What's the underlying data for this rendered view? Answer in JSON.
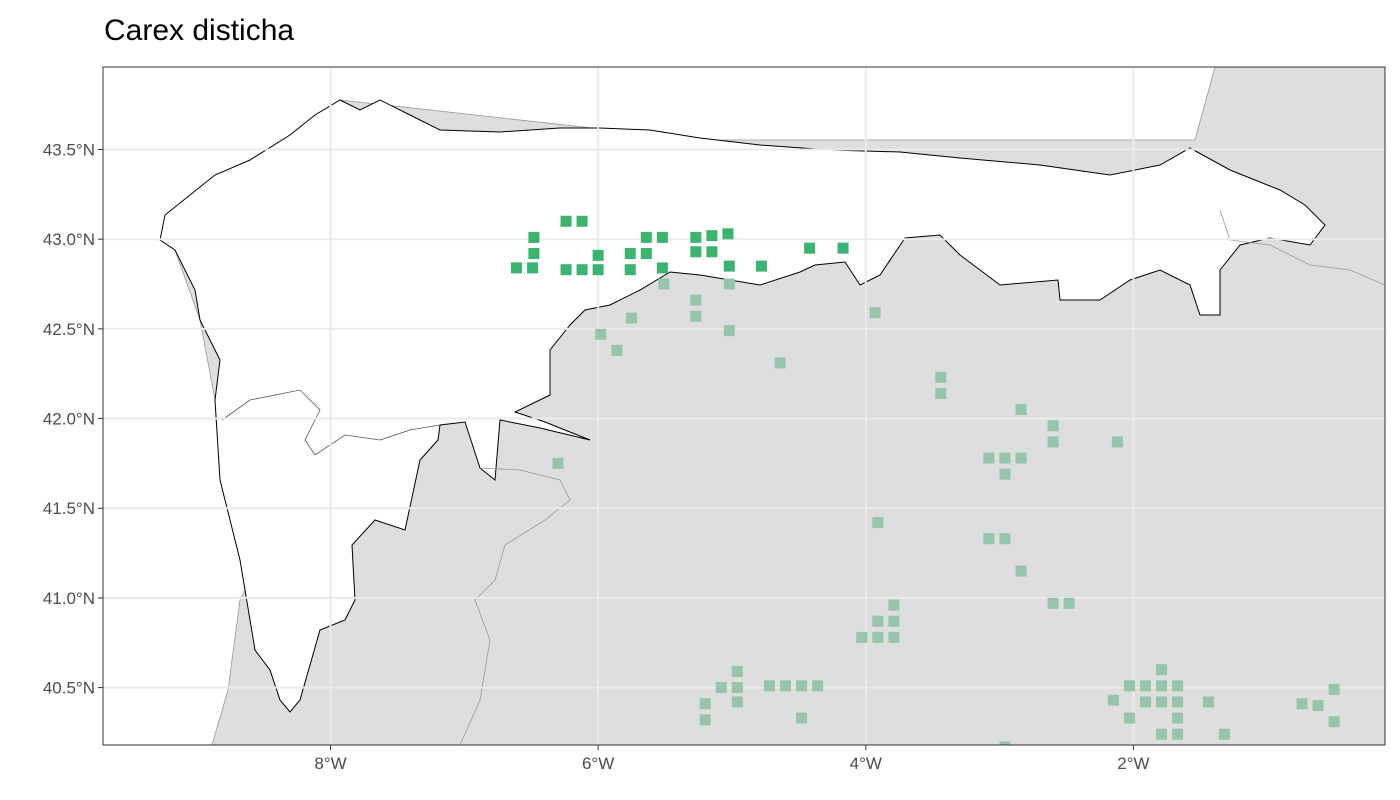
{
  "title": "Carex disticha",
  "colors": {
    "inside": "#3bb371",
    "outside": "#96c5ab",
    "land": "#dedede",
    "sea": "#ffffff",
    "study_outline": "#000000"
  },
  "chart_data": {
    "type": "scatter",
    "title": "Carex disticha",
    "xlabel": "",
    "ylabel": "",
    "xlim": [
      -9.7,
      -0.12
    ],
    "ylim": [
      40.18,
      43.96
    ],
    "grid": true,
    "x_ticks": [
      {
        "value": -8,
        "label": "8°W"
      },
      {
        "value": -6,
        "label": "6°W"
      },
      {
        "value": -4,
        "label": "4°W"
      },
      {
        "value": -2,
        "label": "2°W"
      }
    ],
    "y_ticks": [
      {
        "value": 43.5,
        "label": "43.5°N"
      },
      {
        "value": 43.0,
        "label": "43.0°N"
      },
      {
        "value": 42.5,
        "label": "42.5°N"
      },
      {
        "value": 42.0,
        "label": "42.0°N"
      },
      {
        "value": 41.5,
        "label": "41.5°N"
      },
      {
        "value": 41.0,
        "label": "41.0°N"
      },
      {
        "value": 40.5,
        "label": "40.5°N"
      }
    ],
    "series": [
      {
        "color": "#3bb371",
        "points": [
          [
            -6.61,
            42.84
          ],
          [
            -6.49,
            42.84
          ],
          [
            -6.48,
            43.01
          ],
          [
            -6.48,
            42.92
          ],
          [
            -6.24,
            43.1
          ],
          [
            -6.12,
            43.1
          ],
          [
            -6.24,
            42.83
          ],
          [
            -6.12,
            42.83
          ],
          [
            -6.0,
            42.83
          ],
          [
            -6.0,
            42.91
          ],
          [
            -5.76,
            42.92
          ],
          [
            -5.76,
            42.83
          ],
          [
            -5.64,
            43.01
          ],
          [
            -5.64,
            42.92
          ],
          [
            -5.52,
            43.01
          ],
          [
            -5.52,
            42.84
          ],
          [
            -5.27,
            43.01
          ],
          [
            -5.27,
            42.93
          ],
          [
            -5.15,
            43.02
          ],
          [
            -5.15,
            42.93
          ],
          [
            -5.03,
            43.03
          ],
          [
            -5.02,
            42.85
          ],
          [
            -4.78,
            42.85
          ],
          [
            -4.42,
            42.95
          ],
          [
            -4.17,
            42.95
          ]
        ]
      },
      {
        "color": "#96c5ab",
        "points": [
          [
            -5.51,
            42.75
          ],
          [
            -5.02,
            42.75
          ],
          [
            -5.27,
            42.66
          ],
          [
            -5.27,
            42.57
          ],
          [
            -5.75,
            42.56
          ],
          [
            -5.98,
            42.47
          ],
          [
            -5.86,
            42.38
          ],
          [
            -5.02,
            42.49
          ],
          [
            -4.64,
            42.31
          ],
          [
            -3.93,
            42.59
          ],
          [
            -3.44,
            42.23
          ],
          [
            -3.44,
            42.14
          ],
          [
            -6.3,
            41.75
          ],
          [
            -2.84,
            42.05
          ],
          [
            -2.6,
            41.96
          ],
          [
            -2.6,
            41.87
          ],
          [
            -2.12,
            41.87
          ],
          [
            -3.08,
            41.78
          ],
          [
            -2.96,
            41.78
          ],
          [
            -2.84,
            41.78
          ],
          [
            -2.96,
            41.69
          ],
          [
            -3.91,
            41.42
          ],
          [
            -3.08,
            41.33
          ],
          [
            -2.96,
            41.33
          ],
          [
            -2.84,
            41.15
          ],
          [
            -3.79,
            40.96
          ],
          [
            -2.6,
            40.97
          ],
          [
            -2.48,
            40.97
          ],
          [
            -3.91,
            40.87
          ],
          [
            -3.79,
            40.87
          ],
          [
            -4.03,
            40.78
          ],
          [
            -3.91,
            40.78
          ],
          [
            -3.79,
            40.78
          ],
          [
            -4.96,
            40.59
          ],
          [
            -5.08,
            40.5
          ],
          [
            -4.96,
            40.5
          ],
          [
            -4.72,
            40.51
          ],
          [
            -4.6,
            40.51
          ],
          [
            -4.48,
            40.51
          ],
          [
            -4.36,
            40.51
          ],
          [
            -5.2,
            40.41
          ],
          [
            -4.96,
            40.42
          ],
          [
            -5.2,
            40.32
          ],
          [
            -4.48,
            40.33
          ],
          [
            -1.79,
            40.6
          ],
          [
            -2.03,
            40.51
          ],
          [
            -1.91,
            40.51
          ],
          [
            -1.79,
            40.51
          ],
          [
            -1.67,
            40.51
          ],
          [
            -2.15,
            40.43
          ],
          [
            -1.91,
            40.42
          ],
          [
            -1.79,
            40.42
          ],
          [
            -1.67,
            40.42
          ],
          [
            -1.44,
            40.42
          ],
          [
            -2.03,
            40.33
          ],
          [
            -1.67,
            40.33
          ],
          [
            -1.79,
            40.24
          ],
          [
            -1.67,
            40.24
          ],
          [
            -1.32,
            40.24
          ],
          [
            -0.74,
            40.41
          ],
          [
            -0.62,
            40.4
          ],
          [
            -0.5,
            40.49
          ],
          [
            -0.5,
            40.31
          ],
          [
            -2.96,
            40.17
          ]
        ]
      }
    ]
  }
}
